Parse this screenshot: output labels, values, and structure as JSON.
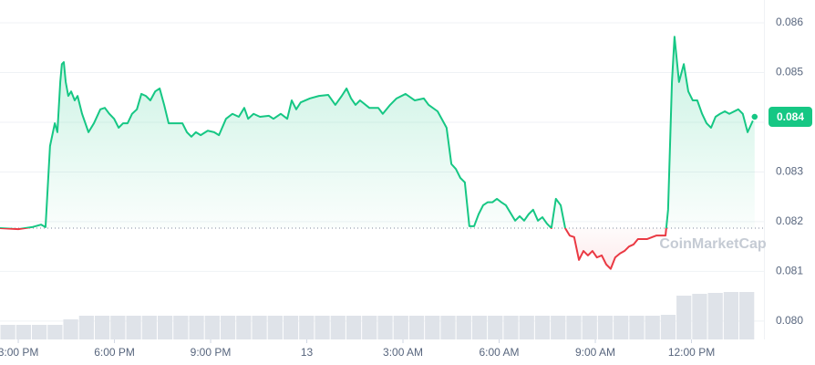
{
  "chart_data": {
    "type": "line",
    "x": [
      -0.57,
      0,
      0.43,
      0.71,
      0.85,
      0.99,
      1.14,
      1.22,
      1.31,
      1.36,
      1.42,
      1.48,
      1.56,
      1.65,
      1.76,
      1.85,
      1.99,
      2.19,
      2.36,
      2.56,
      2.7,
      2.84,
      2.99,
      3.13,
      3.27,
      3.41,
      3.55,
      3.7,
      3.84,
      3.98,
      4.12,
      4.27,
      4.41,
      4.55,
      4.69,
      4.83,
      5.12,
      5.26,
      5.4,
      5.54,
      5.69,
      5.91,
      6.11,
      6.26,
      6.48,
      6.68,
      6.88,
      7.05,
      7.17,
      7.34,
      7.54,
      7.82,
      7.96,
      8.19,
      8.39,
      8.53,
      8.67,
      8.81,
      9.1,
      9.38,
      9.67,
      9.89,
      10.09,
      10.24,
      10.38,
      10.52,
      10.66,
      10.95,
      11.23,
      11.37,
      11.6,
      11.8,
      12.08,
      12.37,
      12.65,
      12.8,
      13.08,
      13.36,
      13.51,
      13.65,
      13.79,
      13.93,
      14.07,
      14.22,
      14.36,
      14.5,
      14.64,
      14.79,
      14.93,
      15.07,
      15.21,
      15.35,
      15.5,
      15.64,
      15.78,
      15.92,
      16.06,
      16.21,
      16.35,
      16.49,
      16.63,
      16.77,
      16.92,
      17.06,
      17.2,
      17.34,
      17.49,
      17.63,
      17.77,
      17.91,
      18.05,
      18.2,
      18.34,
      18.48,
      18.62,
      18.77,
      18.91,
      19.05,
      19.19,
      19.33,
      19.62,
      19.9,
      20.19,
      20.27,
      20.39,
      20.47,
      20.61,
      20.76,
      20.9,
      21.04,
      21.18,
      21.33,
      21.47,
      21.61,
      21.75,
      21.89,
      22.04,
      22.18,
      22.46,
      22.6,
      22.75,
      22.97
    ],
    "values": [
      0.08187,
      0.08185,
      0.08189,
      0.08194,
      0.08189,
      0.08352,
      0.08398,
      0.0838,
      0.08481,
      0.08517,
      0.08521,
      0.08481,
      0.08453,
      0.08462,
      0.08444,
      0.08453,
      0.08417,
      0.0838,
      0.08398,
      0.08426,
      0.08429,
      0.08417,
      0.08407,
      0.08389,
      0.08398,
      0.08398,
      0.08417,
      0.08426,
      0.08457,
      0.08453,
      0.08444,
      0.08462,
      0.08468,
      0.08435,
      0.08398,
      0.08398,
      0.08398,
      0.0838,
      0.08371,
      0.0838,
      0.08374,
      0.08383,
      0.0838,
      0.08374,
      0.08407,
      0.08417,
      0.08411,
      0.08429,
      0.08407,
      0.08417,
      0.08411,
      0.08413,
      0.08407,
      0.08417,
      0.08407,
      0.08444,
      0.08426,
      0.0844,
      0.08448,
      0.08453,
      0.08455,
      0.08435,
      0.08453,
      0.08468,
      0.08448,
      0.08435,
      0.08444,
      0.08429,
      0.08429,
      0.08417,
      0.08435,
      0.08448,
      0.08457,
      0.08444,
      0.08448,
      0.08435,
      0.08422,
      0.08389,
      0.08316,
      0.08306,
      0.08288,
      0.08279,
      0.08191,
      0.08191,
      0.08215,
      0.08233,
      0.08239,
      0.08239,
      0.08246,
      0.08239,
      0.08233,
      0.08218,
      0.08202,
      0.08211,
      0.08202,
      0.08215,
      0.08224,
      0.08202,
      0.08209,
      0.08196,
      0.08187,
      0.08246,
      0.08233,
      0.08187,
      0.08172,
      0.08169,
      0.08123,
      0.08141,
      0.08132,
      0.08141,
      0.08128,
      0.08132,
      0.08114,
      0.08105,
      0.08128,
      0.08136,
      0.08141,
      0.0815,
      0.08154,
      0.08165,
      0.08165,
      0.08172,
      0.08172,
      0.08224,
      0.08481,
      0.08572,
      0.08481,
      0.08517,
      0.08462,
      0.08444,
      0.08444,
      0.08417,
      0.08398,
      0.08389,
      0.08411,
      0.08417,
      0.08422,
      0.08417,
      0.08426,
      0.08417,
      0.0838,
      0.08411
    ],
    "baseline": 0.08187,
    "up_color": "#16c784",
    "down_color": "#ea3943",
    "price_label": "0.084",
    "volume": {
      "color": "#dfe3e9",
      "values": [
        16,
        16,
        16,
        16,
        22,
        26,
        26,
        26,
        26,
        26,
        26,
        26,
        26,
        26,
        26,
        26,
        26,
        26,
        26,
        26,
        26,
        26,
        26,
        26,
        26,
        26,
        26,
        26,
        26,
        26,
        26,
        26,
        26,
        26,
        26,
        26,
        26,
        26,
        26,
        26,
        26,
        26,
        27,
        48,
        50,
        51,
        52,
        52
      ]
    },
    "xlim": [
      -0.57,
      23.26
    ],
    "xticks": [
      {
        "value": 0,
        "label": "3:00 PM"
      },
      {
        "value": 3,
        "label": "6:00 PM"
      },
      {
        "value": 6,
        "label": "9:00 PM"
      },
      {
        "value": 9,
        "label": "13"
      },
      {
        "value": 12,
        "label": "3:00 AM"
      },
      {
        "value": 15,
        "label": "6:00 AM"
      },
      {
        "value": 18,
        "label": "9:00 AM"
      },
      {
        "value": 21,
        "label": "12:00 PM"
      }
    ],
    "ylim": [
      0.07963,
      0.08646
    ],
    "yticks": [
      {
        "value": 0.08,
        "label": "0.080"
      },
      0.081,
      0.082,
      0.083,
      {
        "value": 0.084,
        "label": "0.084"
      },
      0.085,
      0.086
    ],
    "grid": true,
    "watermark": "CoinMarketCap"
  }
}
